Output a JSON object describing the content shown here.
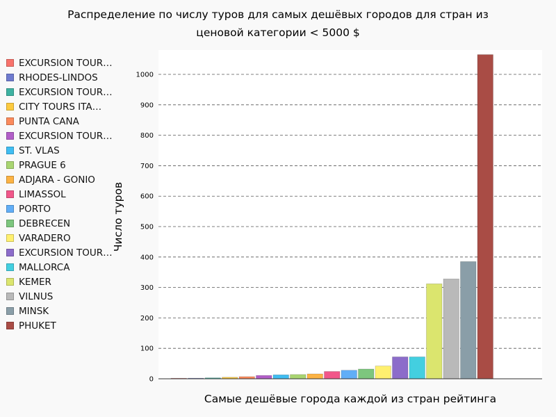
{
  "chart_data": {
    "type": "bar",
    "title": "Распределение по числу туров для самых дешёвых городов для стран из ценовой категории < 5000 $",
    "title_lines": [
      "Распределение по числу туров для самых дешёвых городов для стран из",
      "ценовой категории < 5000 $"
    ],
    "xlabel": "Самые дешёвые города каждой из стран рейтинга",
    "ylabel": "Число туров",
    "ylim": [
      0,
      1080
    ],
    "yticks": [
      0,
      100,
      200,
      300,
      400,
      500,
      600,
      700,
      800,
      900,
      1000
    ],
    "grid": "horizontal dashed",
    "legend_position": "left",
    "series": [
      {
        "name": "EXCURSION TOUR…",
        "value": 1,
        "color": "#f8736c"
      },
      {
        "name": "RHODES-LINDOS",
        "value": 2,
        "color": "#6f7bcf"
      },
      {
        "name": "EXCURSION TOUR…",
        "value": 3,
        "color": "#3eb2a2"
      },
      {
        "name": "CITY TOURS ITA…",
        "value": 5,
        "color": "#fcca3f"
      },
      {
        "name": "PUNTA CANA",
        "value": 7,
        "color": "#fb8a5c"
      },
      {
        "name": "EXCURSION TOUR…",
        "value": 11,
        "color": "#b25ec8"
      },
      {
        "name": "ST. VLAS",
        "value": 13,
        "color": "#3fbdf2"
      },
      {
        "name": "PRAGUE 6",
        "value": 14,
        "color": "#a9d571"
      },
      {
        "name": "ADJARA - GONIO",
        "value": 16,
        "color": "#fcb344"
      },
      {
        "name": "LIMASSOL",
        "value": 24,
        "color": "#f1578a"
      },
      {
        "name": "PORTO",
        "value": 28,
        "color": "#61aef7"
      },
      {
        "name": "DEBRECEN",
        "value": 32,
        "color": "#7dc67e"
      },
      {
        "name": "VARADERO",
        "value": 42,
        "color": "#fff06f"
      },
      {
        "name": "EXCURSION TOUR…",
        "value": 72,
        "color": "#8c6cca"
      },
      {
        "name": "MALLORCA",
        "value": 72,
        "color": "#43cfe0"
      },
      {
        "name": "KEMER",
        "value": 312,
        "color": "#dbe56e"
      },
      {
        "name": "VILNUS",
        "value": 328,
        "color": "#b9b9b9"
      },
      {
        "name": "MINSK",
        "value": 385,
        "color": "#8a9ea8"
      },
      {
        "name": "PHUKET",
        "value": 1065,
        "color": "#a94c45"
      }
    ]
  }
}
